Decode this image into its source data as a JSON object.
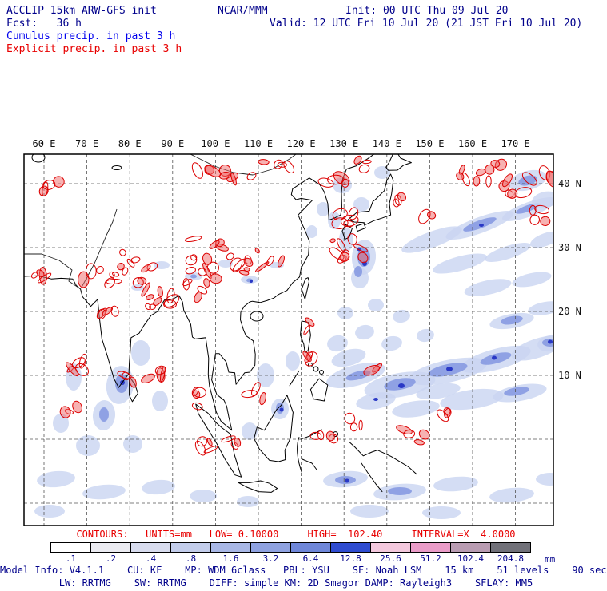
{
  "header": {
    "title": "ACCLIP 15km ARW-GFS init",
    "org": "NCAR/MMM",
    "init": "Init: 00 UTC Thu 09 Jul 20",
    "fcst": "Fcst:   36 h",
    "valid": "Valid: 12 UTC Fri 10 Jul 20 (21 JST Fri 10 Jul 20)",
    "legend_cumulus": "Cumulus precip. in past 3 h",
    "legend_explicit": "Explicit precip. in past 3 h"
  },
  "map": {
    "lon_labels": [
      "60 E",
      "70 E",
      "80 E",
      "90 E",
      "100 E",
      "110 E",
      "120 E",
      "130 E",
      "140 E",
      "150 E",
      "160 E",
      "170 E"
    ],
    "lat_labels": [
      "40 N",
      "30 N",
      "20 N",
      "10 N"
    ]
  },
  "contours_info": "CONTOURS:   UNITS=mm   LOW= 0.10000     HIGH=  102.40     INTERVAL=X  4.0000",
  "colorbar": {
    "labels": [
      ".1",
      ".2",
      ".4",
      ".8",
      "1.6",
      "3.2",
      "6.4",
      "12.8",
      "25.6",
      "51.2",
      "102.4",
      "204.8"
    ],
    "colors": [
      "#ffffff",
      "#ebebf1",
      "#d8dcee",
      "#c3cdeb",
      "#a9b8e6",
      "#8fa2e0",
      "#6f87d9",
      "#2f4cd0",
      "#f3c8dd",
      "#ea9cc8",
      "#b99cb2",
      "#717179"
    ],
    "unit": "mm"
  },
  "footer": {
    "line1": "Model Info: V4.1.1    CU: KF    MP: WDM 6class   PBL: YSU    SF: Noah LSM    15 km    51 levels    90 sec",
    "line2": "LW: RRTMG    SW: RRTMG    DIFF: simple KM: 2D Smagor DAMP: Rayleigh3    SFLAY: MM5"
  },
  "accent_colors": {
    "navy": "#00008b",
    "cumulus_blue": "#0000ee",
    "explicit_red": "#e80000"
  }
}
